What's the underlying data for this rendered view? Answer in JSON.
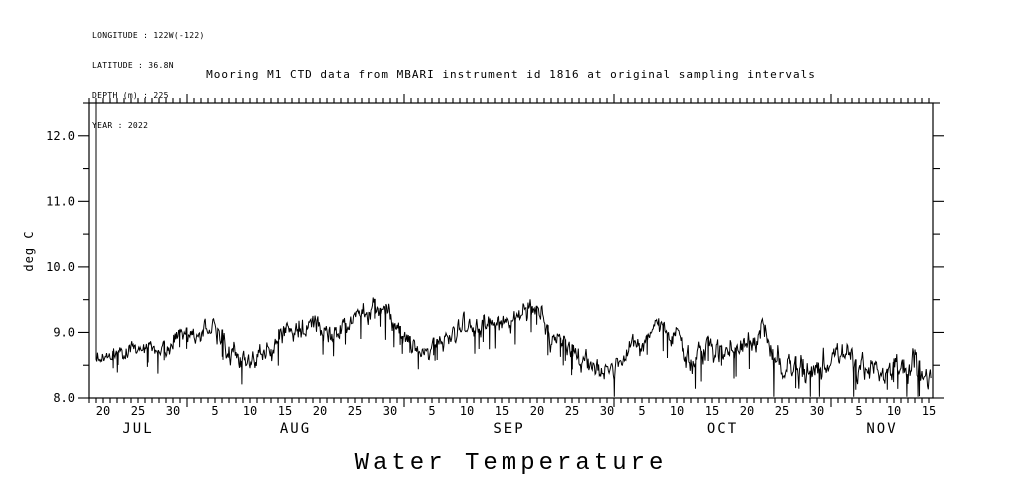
{
  "header": {
    "info_lines": [
      "LONGITUDE : 122W(-122)",
      "LATITUDE : 36.8N",
      "DEPTH (m) : 225",
      "YEAR : 2022"
    ]
  },
  "title": "Mooring M1 CTD data from MBARI instrument id 1816 at original sampling intervals",
  "footer_title": "Water Temperature",
  "chart_data": {
    "type": "line",
    "title": "Mooring M1 CTD data from MBARI instrument id 1816 at original sampling intervals",
    "xlabel": "Water Temperature",
    "ylabel": "deg C",
    "ylim": [
      8.0,
      12.5
    ],
    "grid": false,
    "legend": "none",
    "line_color": "#000000",
    "background": "#ffffff",
    "yticks": {
      "major_values": [
        8.0,
        9.0,
        10.0,
        11.0,
        12.0
      ],
      "major_labels": [
        "8.0",
        "9.0",
        "10.0",
        "11.0",
        "12.0"
      ],
      "minor_step": 0.5
    },
    "x_axis": {
      "year": 2022,
      "start": "Jul 18",
      "end": "Nov 15",
      "extra_days_after_last_tick": 0.57,
      "labeled_days": [
        5,
        10,
        15,
        20,
        25,
        30
      ],
      "months": [
        {
          "label": "JUL",
          "first_day": 18,
          "last_day": 31
        },
        {
          "label": "AUG",
          "first_day": 1,
          "last_day": 31
        },
        {
          "label": "SEP",
          "first_day": 1,
          "last_day": 30
        },
        {
          "label": "OCT",
          "first_day": 1,
          "last_day": 31
        },
        {
          "label": "NOV",
          "first_day": 1,
          "last_day": 15
        }
      ]
    },
    "series": {
      "name": "water temperature",
      "units": "deg C",
      "sampling": "original high-frequency sampling, rendered as daily mean with spread band",
      "start_spike_value": 12.5,
      "dates": [
        "Jul 19",
        "Jul 20",
        "Jul 21",
        "Jul 22",
        "Jul 23",
        "Jul 24",
        "Jul 25",
        "Jul 26",
        "Jul 27",
        "Jul 28",
        "Jul 29",
        "Jul 30",
        "Jul 31",
        "Aug 1",
        "Aug 2",
        "Aug 3",
        "Aug 4",
        "Aug 5",
        "Aug 6",
        "Aug 7",
        "Aug 8",
        "Aug 9",
        "Aug 10",
        "Aug 11",
        "Aug 12",
        "Aug 13",
        "Aug 14",
        "Aug 15",
        "Aug 16",
        "Aug 17",
        "Aug 18",
        "Aug 19",
        "Aug 20",
        "Aug 21",
        "Aug 22",
        "Aug 23",
        "Aug 24",
        "Aug 25",
        "Aug 26",
        "Aug 27",
        "Aug 28",
        "Aug 29",
        "Aug 30",
        "Aug 31",
        "Sep 1",
        "Sep 2",
        "Sep 3",
        "Sep 4",
        "Sep 5",
        "Sep 6",
        "Sep 7",
        "Sep 8",
        "Sep 9",
        "Sep 10",
        "Sep 11",
        "Sep 12",
        "Sep 13",
        "Sep 14",
        "Sep 15",
        "Sep 16",
        "Sep 17",
        "Sep 18",
        "Sep 19",
        "Sep 20",
        "Sep 21",
        "Sep 22",
        "Sep 23",
        "Sep 24",
        "Sep 25",
        "Sep 26",
        "Sep 27",
        "Sep 28",
        "Sep 29",
        "Sep 30",
        "Oct 1",
        "Oct 2",
        "Oct 3",
        "Oct 4",
        "Oct 5",
        "Oct 6",
        "Oct 7",
        "Oct 8",
        "Oct 9",
        "Oct 10",
        "Oct 11",
        "Oct 12",
        "Oct 13",
        "Oct 14",
        "Oct 15",
        "Oct 16",
        "Oct 17",
        "Oct 18",
        "Oct 19",
        "Oct 20",
        "Oct 21",
        "Oct 22",
        "Oct 23",
        "Oct 24",
        "Oct 25",
        "Oct 26",
        "Oct 27",
        "Oct 28",
        "Oct 29",
        "Oct 30",
        "Oct 31",
        "Nov 1",
        "Nov 2",
        "Nov 3",
        "Nov 4",
        "Nov 5",
        "Nov 6",
        "Nov 7",
        "Nov 8",
        "Nov 9",
        "Nov 10",
        "Nov 11",
        "Nov 12",
        "Nov 13",
        "Nov 14",
        "Nov 15"
      ],
      "daily_mean": [
        8.6,
        8.6,
        8.65,
        8.7,
        8.65,
        8.75,
        8.7,
        8.8,
        8.75,
        8.8,
        8.85,
        8.9,
        8.95,
        9.0,
        8.95,
        9.0,
        9.05,
        9.1,
        8.9,
        8.75,
        8.65,
        8.6,
        8.55,
        8.6,
        8.65,
        8.75,
        8.9,
        9.0,
        9.05,
        9.1,
        9.1,
        9.15,
        9.1,
        9.0,
        8.95,
        9.0,
        9.1,
        9.2,
        9.25,
        9.3,
        9.35,
        9.3,
        9.25,
        9.1,
        8.95,
        8.8,
        8.7,
        8.65,
        8.7,
        8.8,
        8.9,
        8.95,
        9.0,
        9.05,
        9.1,
        9.05,
        9.1,
        9.15,
        9.1,
        9.15,
        9.2,
        9.3,
        9.35,
        9.25,
        9.1,
        8.95,
        8.9,
        8.8,
        8.7,
        8.6,
        8.55,
        8.5,
        8.45,
        8.4,
        8.45,
        8.5,
        8.6,
        8.75,
        8.85,
        8.95,
        9.05,
        9.1,
        9.0,
        9.0,
        8.6,
        8.5,
        8.7,
        8.8,
        8.75,
        8.7,
        8.8,
        8.75,
        8.8,
        8.85,
        8.8,
        8.95,
        8.8,
        8.6,
        8.5,
        8.45,
        8.4,
        8.45,
        8.4,
        8.45,
        8.5,
        8.6,
        8.7,
        8.65,
        8.6,
        8.5,
        8.45,
        8.4,
        8.35,
        8.35,
        8.4,
        8.45,
        8.4,
        8.45,
        8.3,
        8.25
      ],
      "daily_spread": [
        0.35,
        0.3,
        0.3,
        0.3,
        0.3,
        0.4,
        0.4,
        0.35,
        0.4,
        0.4,
        0.4,
        0.4,
        0.4,
        0.4,
        0.45,
        0.4,
        0.4,
        0.45,
        0.55,
        0.5,
        0.5,
        0.5,
        0.5,
        0.5,
        0.5,
        0.5,
        0.45,
        0.45,
        0.45,
        0.45,
        0.4,
        0.45,
        0.45,
        0.45,
        0.45,
        0.4,
        0.4,
        0.4,
        0.45,
        0.45,
        0.45,
        0.45,
        0.45,
        0.45,
        0.45,
        0.4,
        0.4,
        0.4,
        0.4,
        0.4,
        0.45,
        0.5,
        0.5,
        0.5,
        0.45,
        0.5,
        0.5,
        0.45,
        0.45,
        0.5,
        0.45,
        0.45,
        0.45,
        0.55,
        0.55,
        0.5,
        0.45,
        0.45,
        0.45,
        0.45,
        0.45,
        0.4,
        0.4,
        0.4,
        0.45,
        0.45,
        0.5,
        0.5,
        0.5,
        0.5,
        0.45,
        0.45,
        0.5,
        0.5,
        0.75,
        0.6,
        0.55,
        0.5,
        0.5,
        0.5,
        0.55,
        0.55,
        0.55,
        0.55,
        0.55,
        0.7,
        0.65,
        0.6,
        0.6,
        0.6,
        0.6,
        0.7,
        0.7,
        0.7,
        0.7,
        0.65,
        0.65,
        0.65,
        0.6,
        0.6,
        0.5,
        0.5,
        0.45,
        0.45,
        0.5,
        0.8,
        0.6,
        0.9,
        0.5,
        0.35
      ]
    }
  }
}
